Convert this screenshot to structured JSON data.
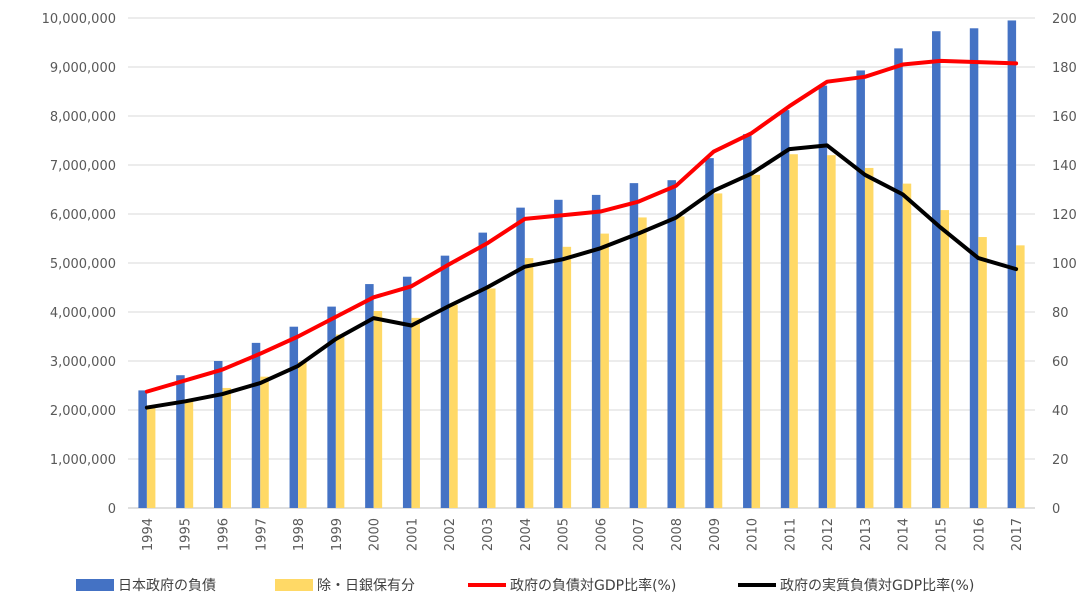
{
  "chart_data": {
    "type": "bar+line",
    "categories": [
      "1994",
      "1995",
      "1996",
      "1997",
      "1998",
      "1999",
      "2000",
      "2001",
      "2002",
      "2003",
      "2004",
      "2005",
      "2006",
      "2007",
      "2008",
      "2009",
      "2010",
      "2011",
      "2012",
      "2013",
      "2014",
      "2015",
      "2016",
      "2017"
    ],
    "left_axis": {
      "ylim": [
        0,
        10000000
      ],
      "ticks": [
        "0",
        "1,000,000",
        "2,000,000",
        "3,000,000",
        "4,000,000",
        "5,000,000",
        "6,000,000",
        "7,000,000",
        "8,000,000",
        "9,000,000",
        "10,000,000"
      ],
      "tick_values": [
        0,
        1000000,
        2000000,
        3000000,
        4000000,
        5000000,
        6000000,
        7000000,
        8000000,
        9000000,
        10000000
      ]
    },
    "right_axis": {
      "ylim": [
        0,
        200
      ],
      "ticks": [
        "0",
        "20",
        "40",
        "60",
        "80",
        "100",
        "120",
        "140",
        "160",
        "180",
        "200"
      ],
      "tick_values": [
        0,
        20,
        40,
        60,
        80,
        100,
        120,
        140,
        160,
        180,
        200
      ]
    },
    "grid": true,
    "legend_position": "bottom",
    "bar_series": [
      {
        "name": "日本政府の負債",
        "color": "#4472C4",
        "axis": "left",
        "values": [
          2400000,
          2710000,
          3000000,
          3370000,
          3700000,
          4110000,
          4570000,
          4720000,
          5150000,
          5620000,
          6130000,
          6290000,
          6390000,
          6630000,
          6690000,
          7140000,
          7630000,
          8120000,
          8620000,
          8930000,
          9380000,
          9730000,
          9790000,
          9950000
        ]
      },
      {
        "name": "除・日銀保有分",
        "color": "#FFD966",
        "axis": "left",
        "values": [
          2050000,
          2190000,
          2450000,
          2680000,
          2980000,
          3540000,
          4020000,
          3880000,
          4150000,
          4480000,
          5100000,
          5330000,
          5600000,
          5930000,
          5950000,
          6420000,
          6800000,
          7220000,
          7200000,
          6940000,
          6620000,
          6080000,
          5530000,
          5360000
        ]
      }
    ],
    "line_series": [
      {
        "name": "政府の負債対GDP比率(%)",
        "color": "#FF0000",
        "axis": "right",
        "values": [
          47.5,
          52,
          56.5,
          63,
          70,
          78,
          86,
          90.5,
          99.5,
          108,
          118,
          119.5,
          121,
          125,
          131.5,
          145.5,
          153,
          164,
          174,
          176,
          181,
          182.5,
          182,
          181.5
        ]
      },
      {
        "name": "政府の実質負債対GDP比率(%)",
        "color": "#000000",
        "axis": "right",
        "values": [
          41,
          43.5,
          46.5,
          51,
          58,
          69,
          77.5,
          74.5,
          82.5,
          90,
          98.5,
          101.5,
          106,
          112,
          118.5,
          129.5,
          136.5,
          146.5,
          148,
          136,
          128,
          114.5,
          102,
          97.5
        ]
      }
    ]
  }
}
